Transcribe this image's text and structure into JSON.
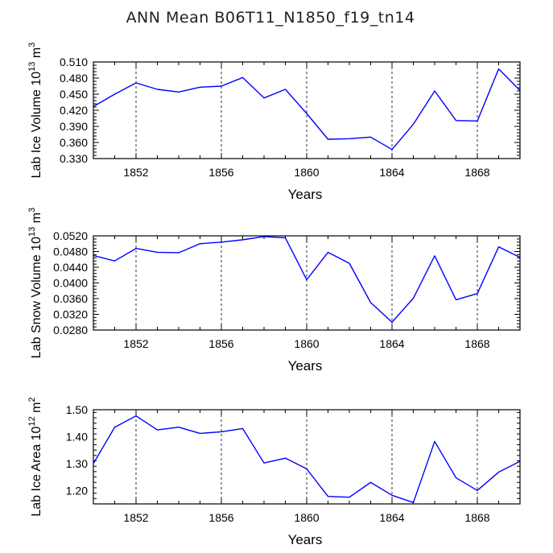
{
  "figure": {
    "title": "ANN Mean B06T11_N1850_f19_tn14"
  },
  "colors": {
    "line": "#0000ff",
    "axis": "#000000",
    "grid": "#000000"
  },
  "chart_data": [
    {
      "type": "line",
      "title": "",
      "xlabel": "Years",
      "ylabel": "Lab Ice Volume 10",
      "ylabel_exp": "13",
      "ylabel_unit": " m",
      "ylabel_unit_exp": "3",
      "xlim": [
        1850,
        1870
      ],
      "ylim": [
        0.33,
        0.51
      ],
      "yticks": [
        0.33,
        0.36,
        0.39,
        0.42,
        0.45,
        0.48,
        0.51
      ],
      "ytick_labels": [
        "0.330",
        "0.360",
        "0.390",
        "0.420",
        "0.450",
        "0.480",
        "0.510"
      ],
      "xticks": [
        1852,
        1856,
        1860,
        1864,
        1868
      ],
      "xtick_labels": [
        "1852",
        "1856",
        "1860",
        "1864",
        "1868"
      ],
      "grid": "vertical dashed at major x ticks",
      "x": [
        1850,
        1851,
        1852,
        1853,
        1854,
        1855,
        1856,
        1857,
        1858,
        1859,
        1860,
        1861,
        1862,
        1863,
        1864,
        1865,
        1866,
        1867,
        1868,
        1869,
        1870
      ],
      "series": [
        {
          "values": [
            0.427,
            0.45,
            0.471,
            0.459,
            0.454,
            0.463,
            0.465,
            0.481,
            0.443,
            0.459,
            0.414,
            0.366,
            0.367,
            0.37,
            0.347,
            0.394,
            0.456,
            0.401,
            0.4,
            0.497,
            0.457
          ]
        }
      ]
    },
    {
      "type": "line",
      "title": "",
      "xlabel": "Years",
      "ylabel": "Lab Snow Volume 10",
      "ylabel_exp": "13",
      "ylabel_unit": " m",
      "ylabel_unit_exp": "3",
      "xlim": [
        1850,
        1870
      ],
      "ylim": [
        0.028,
        0.052
      ],
      "yticks": [
        0.028,
        0.032,
        0.036,
        0.04,
        0.044,
        0.048,
        0.052
      ],
      "ytick_labels": [
        "0.0280",
        "0.0320",
        "0.0360",
        "0.0400",
        "0.0440",
        "0.0480",
        "0.0520"
      ],
      "xticks": [
        1852,
        1856,
        1860,
        1864,
        1868
      ],
      "xtick_labels": [
        "1852",
        "1856",
        "1860",
        "1864",
        "1868"
      ],
      "grid": "vertical dashed at major x ticks",
      "x": [
        1850,
        1851,
        1852,
        1853,
        1854,
        1855,
        1856,
        1857,
        1858,
        1859,
        1860,
        1861,
        1862,
        1863,
        1864,
        1865,
        1866,
        1867,
        1868,
        1869,
        1870
      ],
      "series": [
        {
          "values": [
            0.047,
            0.0456,
            0.0488,
            0.0478,
            0.0477,
            0.05,
            0.0504,
            0.051,
            0.0518,
            0.0515,
            0.0408,
            0.0478,
            0.045,
            0.035,
            0.03,
            0.0361,
            0.0469,
            0.0357,
            0.0373,
            0.0492,
            0.0465
          ]
        }
      ]
    },
    {
      "type": "line",
      "title": "",
      "xlabel": "Years",
      "ylabel": "Lab Ice Area 10",
      "ylabel_exp": "12",
      "ylabel_unit": " m",
      "ylabel_unit_exp": "2",
      "xlim": [
        1850,
        1870
      ],
      "ylim": [
        1.15,
        1.5
      ],
      "yticks": [
        1.2,
        1.3,
        1.4,
        1.5
      ],
      "ytick_labels": [
        "1.20",
        "1.30",
        "1.40",
        "1.50"
      ],
      "xticks": [
        1852,
        1856,
        1860,
        1864,
        1868
      ],
      "xtick_labels": [
        "1852",
        "1856",
        "1860",
        "1864",
        "1868"
      ],
      "grid": "vertical dashed at major x ticks",
      "x": [
        1850,
        1851,
        1852,
        1853,
        1854,
        1855,
        1856,
        1857,
        1858,
        1859,
        1860,
        1861,
        1862,
        1863,
        1864,
        1865,
        1866,
        1867,
        1868,
        1869,
        1870
      ],
      "series": [
        {
          "values": [
            1.3,
            1.435,
            1.477,
            1.425,
            1.435,
            1.412,
            1.418,
            1.43,
            1.302,
            1.32,
            1.28,
            1.178,
            1.175,
            1.23,
            1.182,
            1.155,
            1.382,
            1.247,
            1.2,
            1.268,
            1.308
          ]
        }
      ]
    }
  ]
}
